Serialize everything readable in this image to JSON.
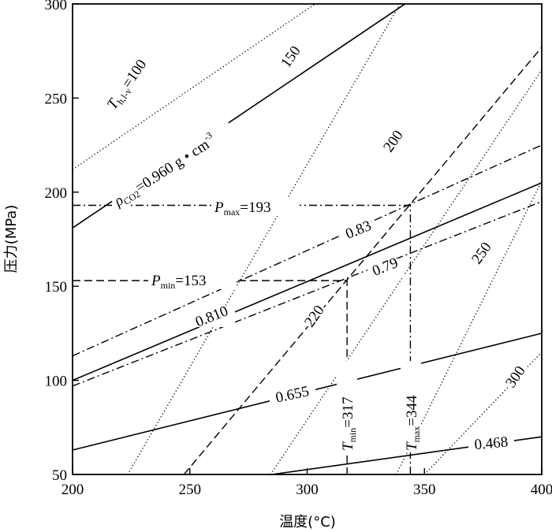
{
  "chart_data": {
    "type": "line",
    "title": "",
    "xlabel": "温度(°C)",
    "ylabel": "压力(MPa)",
    "xlim": [
      200,
      400
    ],
    "ylim": [
      50,
      300
    ],
    "xticks": [
      200,
      250,
      300,
      350,
      400
    ],
    "yticks": [
      50,
      100,
      150,
      200,
      250,
      300
    ],
    "grid": false,
    "series": [
      {
        "style": "dotted",
        "x": [
          200,
          303.4
        ],
        "y": [
          212,
          300
        ]
      },
      {
        "style": "dotted",
        "x": [
          223.5,
          339.6
        ],
        "y": [
          50,
          300
        ]
      },
      {
        "style": "dotted",
        "x": [
          284.4,
          400
        ],
        "y": [
          50,
          265
        ]
      },
      {
        "style": "dotted",
        "x": [
          338,
          400
        ],
        "y": [
          50,
          206
        ]
      },
      {
        "style": "dotted",
        "x": [
          350,
          400
        ],
        "y": [
          50,
          115
        ]
      },
      {
        "style": "solid",
        "x": [
          200,
          341.7
        ],
        "y": [
          181,
          300
        ]
      },
      {
        "style": "solid",
        "x": [
          200,
          400
        ],
        "y": [
          100,
          205
        ]
      },
      {
        "style": "solid",
        "x": [
          200,
          400
        ],
        "y": [
          63,
          125
        ]
      },
      {
        "style": "solid",
        "x": [
          285,
          400
        ],
        "y": [
          50,
          70
        ]
      },
      {
        "style": "dashed",
        "x": [
          247.5,
          400
        ],
        "y": [
          50,
          277
        ]
      },
      {
        "style": "dashdot",
        "x": [
          200,
          400
        ],
        "y": [
          113,
          225
        ]
      },
      {
        "style": "dashdot",
        "x": [
          200,
          400
        ],
        "y": [
          97,
          195
        ]
      },
      {
        "style": "dashed",
        "x": [
          200,
          317,
          317
        ],
        "y": [
          153,
          153,
          50
        ]
      },
      {
        "style": "dashdot",
        "x": [
          200,
          344,
          344
        ],
        "y": [
          193,
          193,
          50
        ]
      }
    ]
  },
  "labels": {
    "th_prefix": "T",
    "th_sub": "h,l-v",
    "th_val": "=100",
    "iso_150": "150",
    "iso_200": "200",
    "iso_220": "220",
    "iso_250": "250",
    "iso_300": "300",
    "rho_prefix": "ρ",
    "rho_sub": "CO2",
    "rho_val": "=0.960 g • cm",
    "rho_sup": "-3",
    "pmax_prefix": "P",
    "pmax_sub": "max",
    "pmax_val": "=193",
    "pmin_prefix": "P",
    "pmin_sub": "min",
    "pmin_val": "=153",
    "d083": "0.83",
    "d079": "0.79",
    "d0810": "0.810",
    "d0655": "0.655",
    "d0468": "0.468",
    "tmin_prefix": "T",
    "tmin_sub": "min",
    "tmin_val": "=317",
    "tmax_prefix": "T",
    "tmax_sub": "max",
    "tmax_val": "=344"
  }
}
